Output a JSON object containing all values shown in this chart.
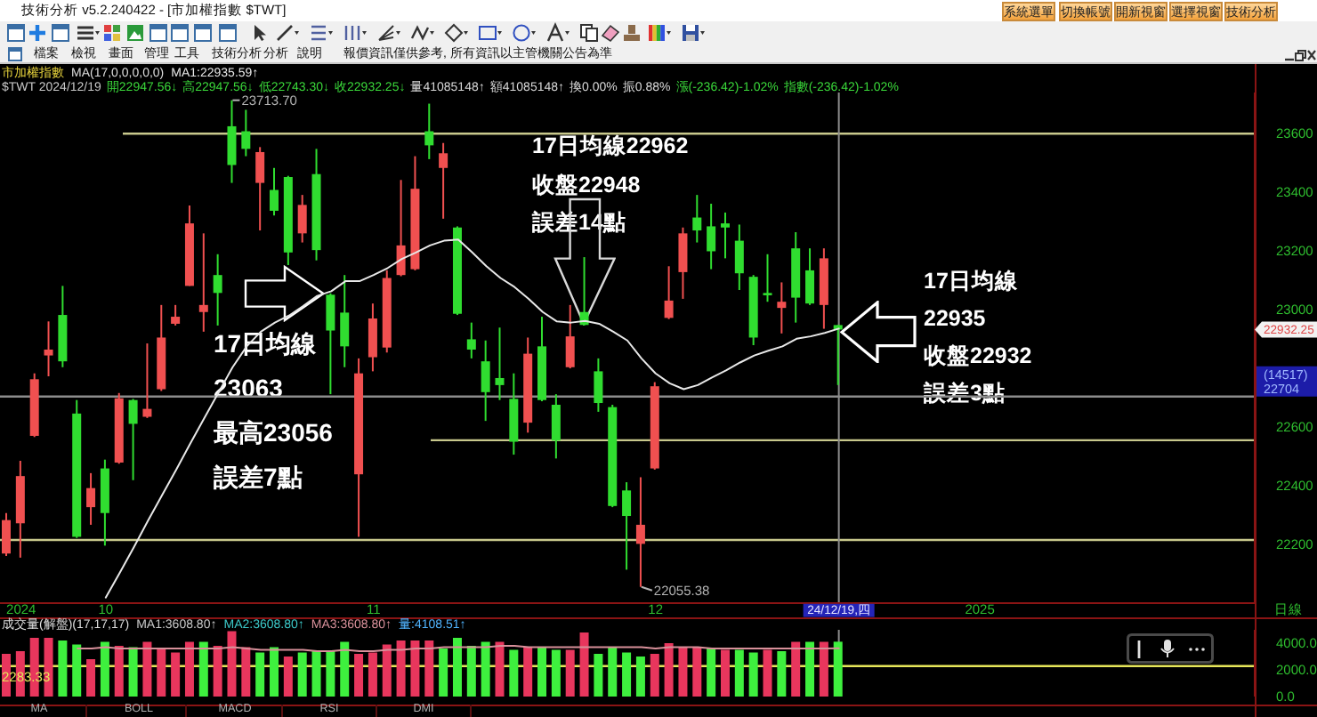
{
  "chart_data": [
    {
      "type": "candlestick",
      "title": "市加權指數",
      "subtitle": "MA(17,0,0,0,0,0)",
      "legend": "top left",
      "categories": [
        null,
        "2024",
        null,
        null,
        null,
        null,
        null,
        "10",
        null,
        null,
        null,
        null,
        null,
        null,
        null,
        null,
        null,
        null,
        null,
        null,
        null,
        null,
        null,
        null,
        null,
        null,
        "11",
        null,
        null,
        null,
        null,
        null,
        null,
        null,
        null,
        null,
        null,
        null,
        null,
        null,
        null,
        null,
        null,
        null,
        null,
        null,
        "12",
        null,
        null,
        null,
        null,
        null,
        null,
        null,
        null,
        null,
        null,
        null,
        null,
        "24/12/19,四",
        null,
        null,
        null,
        null,
        null,
        null,
        null,
        null,
        null,
        "2025",
        null,
        null,
        null,
        null,
        null,
        null,
        null,
        null,
        null,
        null,
        null,
        null,
        null,
        null,
        null,
        null,
        null,
        null,
        null
      ],
      "ohlc": [
        [
          22169,
          22307,
          22161,
          22283
        ],
        [
          22272,
          22485,
          22155,
          22433
        ],
        [
          22570,
          22783,
          22566,
          22763
        ],
        [
          22844,
          22960,
          22773,
          22864
        ],
        [
          22982,
          23081,
          22804,
          22824
        ],
        [
          22646,
          22692,
          22222,
          22226
        ],
        [
          22327,
          22443,
          22267,
          22392
        ],
        [
          22459,
          22489,
          22196,
          22307
        ],
        [
          22479,
          22716,
          22475,
          22698
        ],
        [
          22692,
          22696,
          22419,
          22611
        ],
        [
          22635,
          22885,
          22631,
          22662
        ],
        [
          22729,
          23016,
          22723,
          22905
        ],
        [
          22952,
          23016,
          22946,
          22976
        ],
        [
          23081,
          23355,
          23081,
          23294
        ],
        [
          22992,
          23260,
          22925,
          23016
        ],
        [
          23118,
          23189,
          22946,
          23057
        ],
        [
          23625,
          23713.7,
          23432,
          23493
        ],
        [
          23608,
          23681,
          23523,
          23548
        ],
        [
          23432,
          23554,
          23270,
          23537
        ],
        [
          23408,
          23483,
          23321,
          23337
        ],
        [
          23452,
          23456,
          23152,
          23195
        ],
        [
          23260,
          23391,
          23229,
          23357
        ],
        [
          23462,
          23548,
          23168,
          23203
        ],
        [
          23051,
          23056,
          22712,
          22929
        ],
        [
          22990,
          23118,
          22804,
          22875
        ],
        [
          22439,
          22834,
          22226,
          22783
        ],
        [
          22838,
          23021,
          22790,
          22970
        ],
        [
          22871,
          23134,
          22854,
          23108
        ],
        [
          23118,
          23442,
          23114,
          23219
        ],
        [
          23138,
          23523,
          23134,
          23412
        ],
        [
          23608,
          23702,
          23513,
          23560
        ],
        [
          23483,
          23568,
          23310,
          23533
        ],
        [
          23280,
          23284,
          22982,
          22986
        ],
        [
          22899,
          22956,
          22834,
          22864
        ],
        [
          22824,
          22895,
          22621,
          22719
        ],
        [
          22767,
          22939,
          22692,
          22743
        ],
        [
          22696,
          22783,
          22506,
          22550
        ],
        [
          22615,
          22905,
          22581,
          22850
        ],
        [
          22875,
          22976,
          22688,
          22692
        ],
        [
          22676,
          22712,
          22493,
          22554
        ],
        [
          22804,
          23016,
          22800,
          22909
        ],
        [
          22992,
          23179,
          22946,
          22948
        ],
        [
          22790,
          22834,
          22652,
          22682
        ],
        [
          22668,
          22676,
          22327,
          22331
        ],
        [
          22384,
          22412,
          22114,
          22297
        ],
        [
          22202,
          22429,
          22055.38,
          22267
        ],
        [
          22459,
          22753,
          22455,
          22739
        ],
        [
          22972,
          23148,
          22968,
          23031
        ],
        [
          23128,
          23280,
          23037,
          23260
        ],
        [
          23314,
          23391,
          23229,
          23270
        ],
        [
          23284,
          23361,
          23138,
          23199
        ],
        [
          23294,
          23331,
          23175,
          23280
        ],
        [
          23235,
          23290,
          23067,
          23124
        ],
        [
          23112,
          23118,
          22879,
          22905
        ],
        [
          23057,
          23189,
          23027,
          23049
        ],
        [
          23006,
          23093,
          22919,
          23027
        ],
        [
          23209,
          23264,
          22956,
          23041
        ],
        [
          23134,
          23209,
          23016,
          23021
        ],
        [
          23016,
          23209,
          22935,
          23175
        ],
        [
          22947.56,
          22947.56,
          22743.3,
          22932.25
        ],
        null,
        null,
        null,
        null,
        null,
        null,
        null,
        null,
        null,
        null,
        null,
        null,
        null,
        null,
        null,
        null,
        null,
        null,
        null,
        null,
        null,
        null,
        null,
        null,
        null,
        null,
        null,
        null,
        null
      ],
      "colors": [
        "#f05050",
        "#f05050",
        "#f05050",
        "#f05050",
        "#30dd30",
        "#30dd30",
        "#f05050",
        "#30dd30",
        "#f05050",
        "#30dd30",
        "#f05050",
        "#f05050",
        "#f05050",
        "#f05050",
        "#f05050",
        "#30dd30",
        "#30dd30",
        "#30dd30",
        "#f05050",
        "#30dd30",
        "#30dd30",
        "#f05050",
        "#30dd30",
        "#30dd30",
        "#30dd30",
        "#f05050",
        "#f05050",
        "#f05050",
        "#f05050",
        "#f05050",
        "#30dd30",
        "#f05050",
        "#30dd30",
        "#30dd30",
        "#30dd30",
        "#30dd30",
        "#30dd30",
        "#f05050",
        "#30dd30",
        "#30dd30",
        "#f05050",
        "#30dd30",
        "#30dd30",
        "#30dd30",
        "#30dd30",
        "#f05050",
        "#f05050",
        "#f05050",
        "#f05050",
        "#30dd30",
        "#30dd30",
        "#30dd30",
        "#30dd30",
        "#30dd30",
        "#30dd30",
        "#f05050",
        "#30dd30",
        "#30dd30",
        "#f05050",
        "#30dd30",
        null,
        null,
        null,
        null,
        null,
        null,
        null,
        null,
        null,
        null,
        null,
        null,
        null,
        null,
        null,
        null,
        null,
        null,
        null,
        null,
        null,
        null,
        null,
        null,
        null,
        null,
        null,
        null,
        null
      ],
      "series": [
        {
          "type": "line",
          "name": "MA1:22935.59↑",
          "color": "#e8e8e8",
          "values": [
            null,
            null,
            null,
            null,
            null,
            null,
            null,
            22019,
            22104,
            22191,
            22281,
            22368,
            22455,
            22544,
            22631,
            22718,
            22804,
            22875,
            22925,
            22956,
            22980,
            23012,
            23047,
            23063,
            23097,
            23097,
            23118,
            23142,
            23173,
            23195,
            23219,
            23235,
            23239,
            23195,
            23148,
            23108,
            23077,
            23037,
            22992,
            22960,
            22956,
            22962,
            22952,
            22925,
            22895,
            22834,
            22783,
            22749,
            22729,
            22743,
            22769,
            22793,
            22820,
            22844,
            22860,
            22875,
            22901,
            22909,
            22921,
            22935.59,
            null,
            null,
            null,
            null,
            null,
            null,
            null,
            null,
            null,
            null,
            null,
            null,
            null,
            null,
            null,
            null,
            null,
            null,
            null,
            null,
            null,
            null,
            null,
            null,
            null,
            null,
            null,
            null,
            null
          ]
        }
      ],
      "ylim": [
        22000,
        23740
      ],
      "yticks": [
        22200,
        22400,
        22600,
        23000,
        23200,
        23400,
        23600
      ],
      "ref_lines": [
        {
          "axis": "y",
          "value": 23600,
          "color": "#c8c88c"
        },
        {
          "axis": "y",
          "value": 22704,
          "color": "#8c8c8c"
        },
        {
          "axis": "y",
          "value": 22555,
          "color": "#c8c88c"
        },
        {
          "axis": "y",
          "value": 22215,
          "color": "#c8c88c"
        },
        {
          "axis": "x",
          "value": "24/12/19,四",
          "color": "#8c8c8c"
        }
      ],
      "annotations": [
        "技術分析 v5.2.240422 - [市加權指數 $TWT]",
        "系統選單",
        "切換帳號",
        "開新視窗",
        "選擇視窗",
        "技術分析",
        "檔案",
        "檢視",
        "畫面",
        "管理",
        "工具",
        "技術分析",
        "分析",
        "說明",
        "報價資訊僅供參考, 所有資訊以主管機關公告為準",
        "$TWT 2024/12/19",
        "開22947.56↓",
        "高22947.56↓",
        "低22743.30↓",
        "收22932.25↓",
        "量41085148↑",
        "額41085148↑",
        "換0.00%",
        "振0.88%",
        "漲(-236.42)-1.02%",
        "指數(-236.42)-1.02%",
        "日線",
        "17日均線\n23063\n最高23056\n誤差7點",
        "17日均線22962\n收盤22948\n誤差14點",
        "17日均線\n22935\n收盤22932\n誤差3點",
        "23713.70",
        "22055.38",
        "22932.25",
        "(14517)",
        "22704"
      ]
    },
    {
      "type": "bar",
      "title": "成交量(解盤)(17,17,17)",
      "legend": "top left",
      "tick_labels": "y",
      "categories": [
        null,
        "2024",
        null,
        null,
        null,
        null,
        null,
        "10",
        null,
        null,
        null,
        null,
        null,
        null,
        null,
        null,
        null,
        null,
        null,
        null,
        null,
        null,
        null,
        null,
        null,
        null,
        "11",
        null,
        null,
        null,
        null,
        null,
        null,
        null,
        null,
        null,
        null,
        null,
        null,
        null,
        null,
        null,
        null,
        null,
        null,
        null,
        "12",
        null,
        null,
        null,
        null,
        null,
        null,
        null,
        null,
        null,
        null,
        null,
        null,
        "24/12/19,四",
        null,
        null,
        null,
        null,
        null,
        null,
        null,
        null,
        null,
        "2025",
        null,
        null,
        null,
        null,
        null,
        null,
        null,
        null,
        null,
        null,
        null,
        null,
        null,
        null,
        null,
        null,
        null,
        null,
        null
      ],
      "values": [
        3200,
        3400,
        4400,
        4400,
        4200,
        3900,
        2800,
        4100,
        3800,
        3700,
        4100,
        3600,
        3300,
        4100,
        4100,
        3800,
        4900,
        3700,
        3300,
        3700,
        3000,
        3300,
        3400,
        3400,
        4100,
        3200,
        3300,
        3900,
        4200,
        4200,
        4200,
        3600,
        4400,
        3800,
        4100,
        4100,
        3500,
        3700,
        3700,
        3500,
        3500,
        4800,
        3200,
        3700,
        3300,
        3000,
        3200,
        4000,
        3700,
        3700,
        3600,
        3500,
        3500,
        3300,
        3500,
        3400,
        4100,
        4100,
        4100,
        4108.51,
        null,
        null,
        null,
        null,
        null,
        null,
        null,
        null,
        null,
        null,
        null,
        null,
        null,
        null,
        null,
        null,
        null,
        null,
        null,
        null,
        null,
        null,
        null,
        null,
        null,
        null,
        null,
        null,
        null
      ],
      "colors": [
        "#e8365d",
        "#e8365d",
        "#e8365d",
        "#e8365d",
        "#3ef03e",
        "#3ef03e",
        "#e8365d",
        "#3ef03e",
        "#e8365d",
        "#3ef03e",
        "#e8365d",
        "#e8365d",
        "#e8365d",
        "#e8365d",
        "#3ef03e",
        "#e8365d",
        "#e8365d",
        "#e8365d",
        "#3ef03e",
        "#3ef03e",
        "#e8365d",
        "#3ef03e",
        "#3ef03e",
        "#3ef03e",
        "#3ef03e",
        "#e8365d",
        "#e8365d",
        "#e8365d",
        "#e8365d",
        "#e8365d",
        "#e8365d",
        "#3ef03e",
        "#3ef03e",
        "#3ef03e",
        "#3ef03e",
        "#e8365d",
        "#3ef03e",
        "#e8365d",
        "#3ef03e",
        "#3ef03e",
        "#e8365d",
        "#e8365d",
        "#3ef03e",
        "#3ef03e",
        "#3ef03e",
        "#3ef03e",
        "#e8365d",
        "#e8365d",
        "#e8365d",
        "#e8365d",
        "#3ef03e",
        "#e8365d",
        "#3ef03e",
        "#3ef03e",
        "#e8365d",
        "#3ef03e",
        "#e8365d",
        "#3ef03e",
        "#e8365d",
        "#3ef03e",
        null,
        null,
        null,
        null,
        null,
        null,
        null,
        null,
        null,
        null,
        null,
        null,
        null,
        null,
        null,
        null,
        null,
        null,
        null,
        null,
        null,
        null,
        null,
        null,
        null,
        null,
        null,
        null,
        null
      ],
      "series": [
        {
          "type": "line",
          "name": "MA3:3608.80↑",
          "color": "#d8909a",
          "values": [
            null,
            null,
            null,
            null,
            null,
            3600,
            3600,
            3700,
            3600,
            3600,
            3600,
            3600,
            3600,
            3600,
            3600,
            3600,
            3700,
            3600,
            3500,
            3500,
            3500,
            3500,
            3400,
            3400,
            3500,
            3400,
            3400,
            3500,
            3500,
            3600,
            3600,
            3700,
            3700,
            3700,
            3700,
            3800,
            3800,
            3700,
            3700,
            3700,
            3700,
            3700,
            3700,
            3700,
            3700,
            3700,
            3600,
            3700,
            3700,
            3700,
            3600,
            3600,
            3600,
            3600,
            3600,
            3600,
            3600,
            3600,
            3600,
            3608.8,
            null,
            null,
            null,
            null,
            null,
            null,
            null,
            null,
            null,
            null,
            null,
            null,
            null,
            null,
            null,
            null,
            null,
            null,
            null,
            null,
            null,
            null,
            null,
            null,
            null,
            null,
            null,
            null,
            null
          ]
        }
      ],
      "ylim": [
        0,
        5000
      ],
      "yticks": [
        {
          "value": 0,
          "label": "0.0"
        },
        {
          "value": 2000,
          "label": "2000.0"
        },
        {
          "value": 4000,
          "label": "4000.0"
        }
      ],
      "ref_lines": [
        {
          "axis": "y",
          "value": 2283.33,
          "label": "2283.33",
          "color": "#e6e65a"
        },
        {
          "axis": "x",
          "value": "24/12/19,四",
          "color": "#8c8c8c"
        }
      ],
      "annotations": [
        "MA1:3608.80↑",
        "MA2:3608.80↑",
        "量:4108.51↑",
        "MA",
        "BOLL",
        "MACD",
        "RSI",
        "DMI"
      ]
    }
  ]
}
